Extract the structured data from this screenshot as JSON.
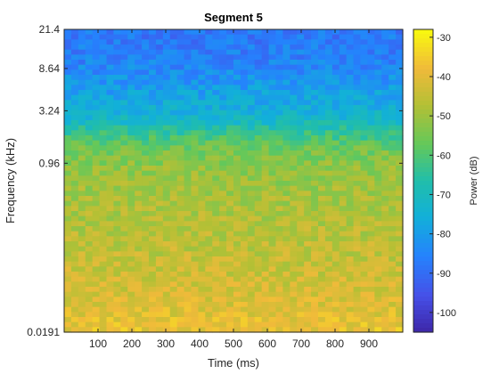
{
  "chart_data": {
    "type": "heatmap",
    "title": "Segment 5",
    "xlabel": "Time (ms)",
    "ylabel": "Frequency (kHz)",
    "x_range": [
      0,
      1000
    ],
    "x_ticks": [
      100,
      200,
      300,
      400,
      500,
      600,
      700,
      800,
      900
    ],
    "y_scale": "log",
    "y_range": [
      0.0191,
      21.4
    ],
    "y_tick_labels": [
      "0.0191",
      "0.96",
      "3.24",
      "8.64",
      "21.4"
    ],
    "grid": false,
    "colorbar": {
      "label": "Power (dB)",
      "range": [
        -105,
        -28
      ],
      "ticks": [
        -30,
        -40,
        -50,
        -60,
        -70,
        -80,
        -90,
        -100
      ],
      "colormap": "parula"
    },
    "z_profile": {
      "description_axis": "mean power vs normalized band position (0 = bottom, 1 = top)",
      "band_positions": [
        0.0,
        0.05,
        0.15,
        0.25,
        0.35,
        0.45,
        0.55,
        0.6,
        0.65,
        0.7,
        0.8,
        0.9,
        1.0
      ],
      "mean_power_db": [
        -38,
        -40,
        -43,
        -45,
        -47,
        -49,
        -52,
        -55,
        -62,
        -72,
        -80,
        -86,
        -88
      ]
    }
  }
}
